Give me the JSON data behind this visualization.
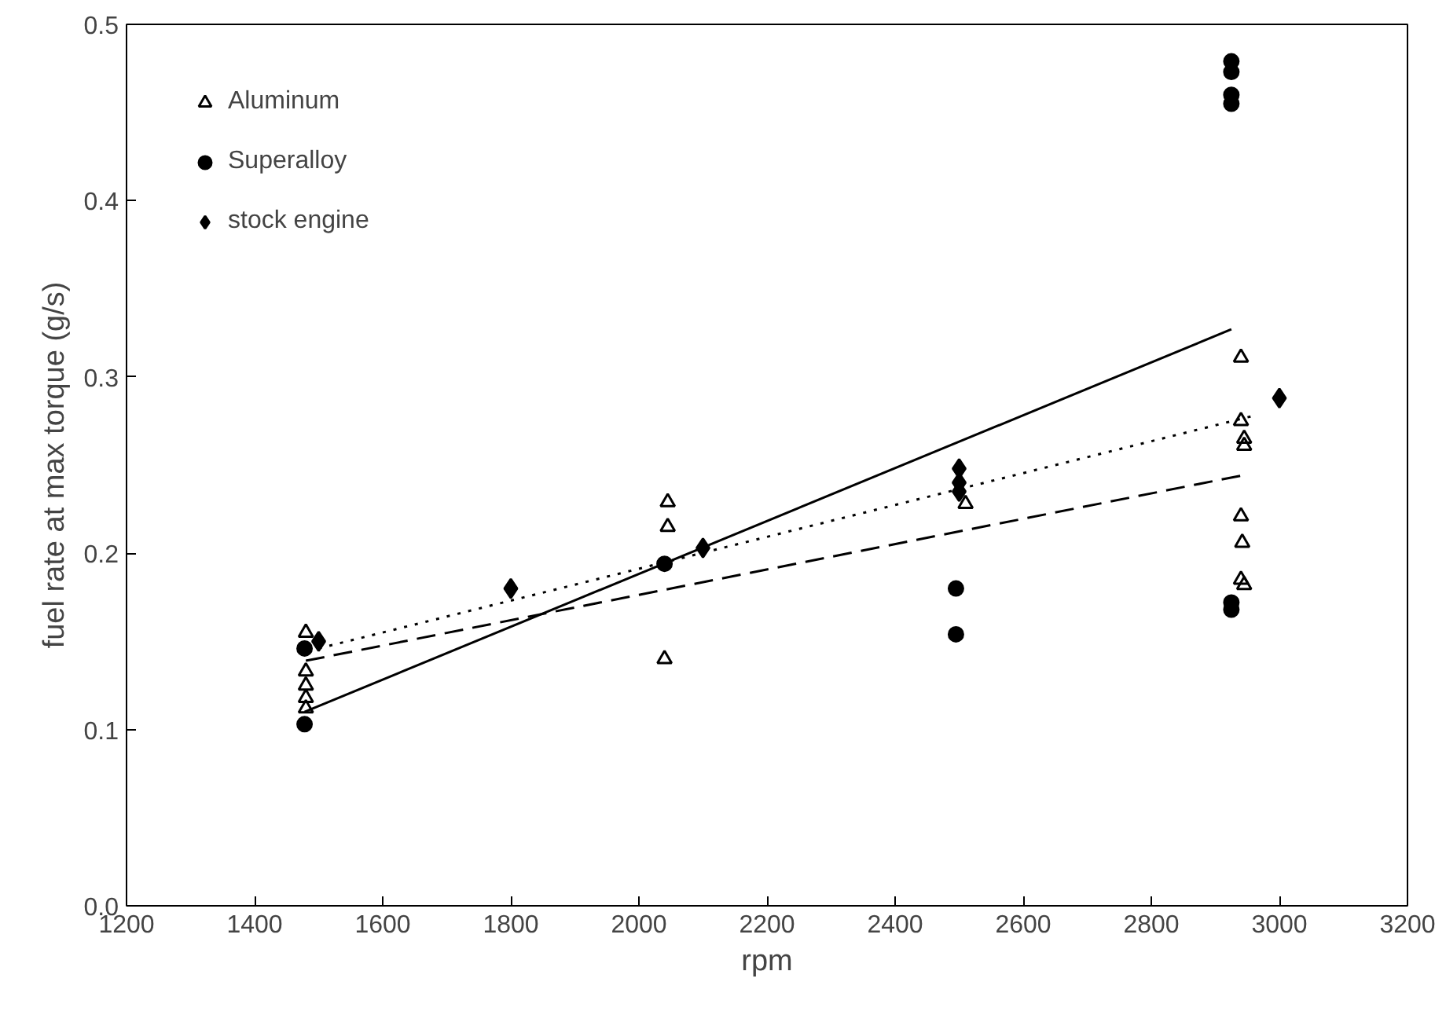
{
  "chart_data": {
    "type": "scatter",
    "xlabel": "rpm",
    "ylabel": "fuel rate at max torque (g/s)",
    "xlim": [
      1200,
      3200
    ],
    "xticks": [
      1200,
      1400,
      1600,
      1800,
      2000,
      2200,
      2400,
      2600,
      2800,
      3000,
      3200
    ],
    "ylim": [
      0,
      0.5
    ],
    "yticks": [
      {
        "value": 0,
        "label": "0.0"
      },
      0.1,
      0.2,
      0.3,
      0.4,
      0.5
    ],
    "grid": false,
    "legend": "top left",
    "series": [
      {
        "name": "Aluminum",
        "color": "#000000",
        "marker": "triangle",
        "x": [
          1480,
          1480,
          1480,
          1480,
          1480,
          2045,
          2045,
          2040,
          2510,
          2940,
          2940,
          2945,
          2945,
          2940,
          2942,
          2940,
          2945
        ],
        "values": [
          0.155,
          0.133,
          0.125,
          0.118,
          0.112,
          0.229,
          0.215,
          0.14,
          0.228,
          0.311,
          0.275,
          0.265,
          0.261,
          0.221,
          0.206,
          0.185,
          0.182
        ]
      },
      {
        "name": "Superalloy",
        "color": "#000000",
        "marker": "circle",
        "x": [
          1478,
          1478,
          2040,
          2495,
          2495,
          2925,
          2925,
          2925,
          2925,
          2925,
          2925
        ],
        "values": [
          0.146,
          0.103,
          0.194,
          0.18,
          0.154,
          0.479,
          0.473,
          0.46,
          0.455,
          0.172,
          0.168
        ]
      },
      {
        "name": "stock engine",
        "color": "#000000",
        "marker": "diamond",
        "x": [
          1500,
          1800,
          2100,
          2500,
          2500,
          2500,
          3000
        ],
        "values": [
          0.15,
          0.18,
          0.203,
          0.248,
          0.24,
          0.235,
          0.288
        ]
      },
      {
        "type": "line",
        "color": "#000000",
        "line_style": "dashed",
        "x": [
          1480,
          2940
        ],
        "values": [
          0.139,
          0.244
        ]
      },
      {
        "type": "line",
        "color": "#000000",
        "line_style": "solid",
        "x": [
          1478,
          2925
        ],
        "values": [
          0.11,
          0.327
        ]
      },
      {
        "type": "line",
        "color": "#000000",
        "line_style": "dotted",
        "x": [
          1500,
          2960
        ],
        "values": [
          0.146,
          0.278
        ]
      }
    ]
  }
}
